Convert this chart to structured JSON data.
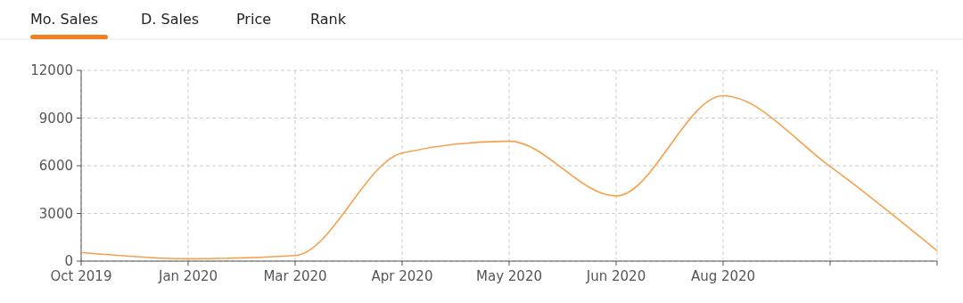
{
  "chart_data": {
    "type": "line",
    "annotations": [
      "Mo. Sales",
      "D. Sales",
      "Price",
      "Rank"
    ],
    "categories": [
      "Oct 2019",
      "Jan 2020",
      "Mar 2020",
      "Apr 2020",
      "May 2020",
      "Jun 2020",
      "Aug 2020",
      null,
      null
    ],
    "series": [
      {
        "color": "#f7a04b",
        "values": [
          550,
          150,
          350,
          6800,
          7550,
          4100,
          10400,
          5950,
          650
        ]
      }
    ],
    "ylim": [
      0,
      12000
    ],
    "yticks": [
      0,
      3000,
      6000,
      9000,
      12000
    ],
    "grid": true,
    "marker": "none",
    "line_style": "solid"
  }
}
